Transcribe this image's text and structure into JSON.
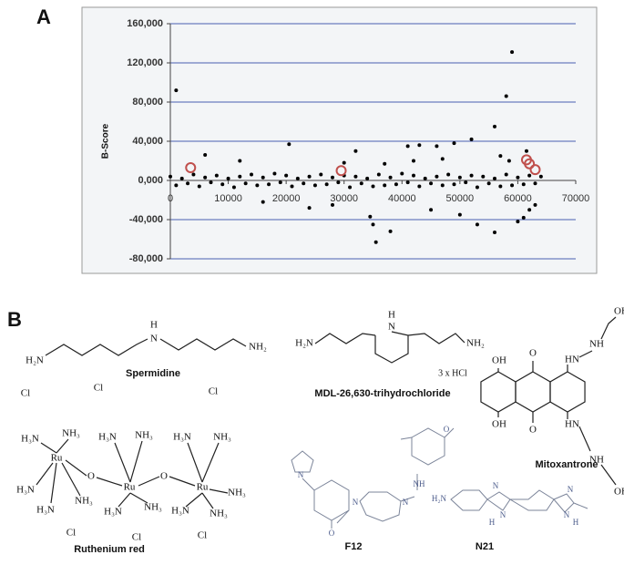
{
  "panel_labels": [
    "A",
    "B"
  ],
  "chart_data": {
    "type": "scatter",
    "ylabel": "B-Score",
    "xlim": [
      0,
      70000
    ],
    "xticks": [
      0,
      10000,
      20000,
      30000,
      40000,
      50000,
      60000,
      70000
    ],
    "ylim": [
      -80000,
      160000
    ],
    "yticks": [
      {
        "value": -80000,
        "label": "-80,000"
      },
      {
        "value": -40000,
        "label": "-40,000"
      },
      {
        "value": 0,
        "label": "0,000"
      },
      {
        "value": 40000,
        "label": "40,000"
      },
      {
        "value": 80000,
        "label": "80,000"
      },
      {
        "value": 120000,
        "label": "120,000"
      },
      {
        "value": 160000,
        "label": "160,000"
      }
    ],
    "grid": true,
    "grid_color": "#4a5fb0",
    "series": [
      {
        "color": "#000000",
        "marker": "dot",
        "x": [
          0,
          1000,
          2000,
          3000,
          4000,
          5000,
          6000,
          7000,
          8000,
          9000,
          10000,
          11000,
          12000,
          13000,
          14000,
          15000,
          16000,
          17000,
          18000,
          19000,
          20000,
          21000,
          22000,
          23000,
          24000,
          25000,
          26000,
          27000,
          28000,
          29000,
          30000,
          31000,
          32000,
          33000,
          34000,
          35000,
          36000,
          37000,
          38000,
          39000,
          40000,
          41000,
          42000,
          43000,
          44000,
          45000,
          46000,
          47000,
          48000,
          49000,
          50000,
          51000,
          52000,
          53000,
          54000,
          55000,
          56000,
          57000,
          58000,
          59000,
          60000,
          61000,
          62000,
          63000,
          64000,
          1000,
          59000,
          58000,
          56000,
          52000,
          49000,
          46000,
          41000,
          43000,
          20500,
          32000,
          37000,
          30000,
          6000,
          12000,
          35000,
          35500,
          34500,
          38000,
          53000,
          56000,
          60000,
          61000,
          62000,
          45000,
          24000,
          16000,
          28000,
          50000,
          57000,
          61500,
          58500,
          42000,
          47000,
          63000
        ],
        "values": [
          4000,
          -5000,
          2000,
          -3000,
          6000,
          -6000,
          3000,
          -2000,
          5000,
          -4000,
          2000,
          -7000,
          4000,
          -3000,
          6000,
          -5000,
          3000,
          -4000,
          7000,
          -2000,
          5000,
          -6000,
          2000,
          -3000,
          4000,
          -5000,
          6000,
          -4000,
          3000,
          -2000,
          5000,
          -7000,
          4000,
          -3000,
          2000,
          -6000,
          6000,
          -5000,
          3000,
          -4000,
          7000,
          -2000,
          5000,
          -6000,
          2000,
          -3000,
          4000,
          -5000,
          6000,
          -4000,
          3000,
          -2000,
          5000,
          -7000,
          4000,
          -3000,
          2000,
          -6000,
          6000,
          -5000,
          3000,
          -4000,
          5000,
          -3000,
          4000,
          92000,
          131000,
          86000,
          55000,
          42000,
          38000,
          35000,
          35000,
          36000,
          37000,
          30000,
          17000,
          18000,
          26000,
          20000,
          -45000,
          -63000,
          -37000,
          -52000,
          -45000,
          -53000,
          -42000,
          -38000,
          -30000,
          -30000,
          -28000,
          -22000,
          -25000,
          -35000,
          25000,
          30000,
          20000,
          20000,
          22000,
          -25000
        ]
      },
      {
        "color": "#c0504d",
        "marker": "ring",
        "x": [
          3500,
          29500,
          61500,
          62000,
          63000
        ],
        "values": [
          13000,
          10000,
          21000,
          17000,
          11000
        ]
      }
    ]
  },
  "structures": [
    {
      "name": "Spermidine",
      "atoms": [
        "H₂N",
        "H",
        "N",
        "NH₂"
      ]
    },
    {
      "name": "MDL-26,630-trihydrochloride",
      "atoms": [
        "H₂N",
        "H",
        "N",
        "NH₂"
      ],
      "note": "3 x HCl"
    },
    {
      "name": "Mitoxantrone",
      "atoms": [
        "OH",
        "NH",
        "HN",
        "O",
        "OH",
        "OH",
        "O",
        "HN",
        "NH",
        "OH"
      ]
    },
    {
      "name": "Ruthenium red",
      "atoms": [
        "Cl",
        "Cl",
        "Cl",
        "NH₃",
        "H₃N",
        "Ru",
        "H₃N",
        "NH₃",
        "H₃N",
        "O",
        "H₃N",
        "NH₃",
        "Ru",
        "NH₃",
        "H₃N",
        "O",
        "H₃N",
        "NH₃",
        "Ru",
        "NH₃",
        "H₃N",
        "NH₃",
        "Cl",
        "Cl",
        "Cl"
      ]
    },
    {
      "name": "F12",
      "atoms": [
        "N",
        "O",
        "N",
        "N",
        "NH",
        "O"
      ]
    },
    {
      "name": "N21",
      "atoms": [
        "H₂N",
        "N",
        "N",
        "H",
        "N",
        "N",
        "H"
      ]
    }
  ]
}
